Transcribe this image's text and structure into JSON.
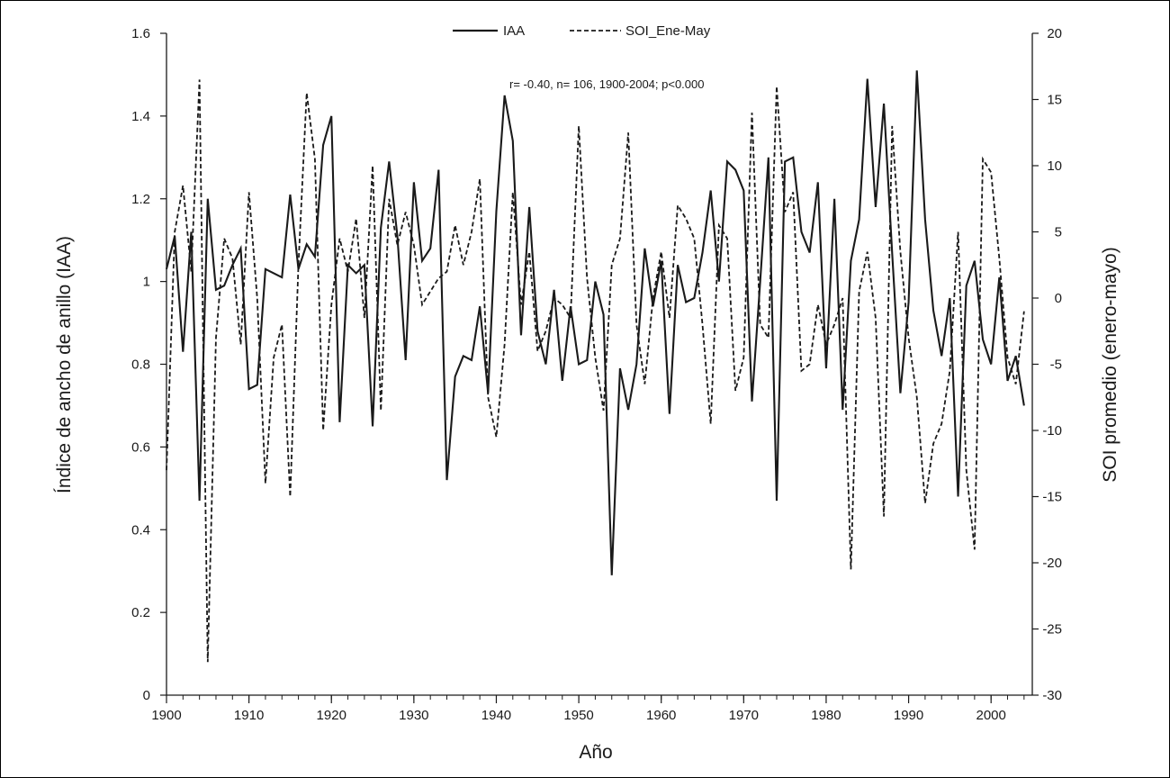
{
  "chart_data": {
    "type": "line",
    "title": "",
    "annotation": "r= -0.40, n= 106, 1900-2004; p<0.000",
    "xlabel": "Año",
    "ylabel_left": "Índice de ancho de anillo (IAA)",
    "ylabel_right": "SOI promedio (enero-mayo)",
    "xlim": [
      1900,
      2005
    ],
    "ylim_left": [
      0,
      1.6
    ],
    "ylim_right": [
      -30,
      20
    ],
    "x_ticks": [
      1900,
      1910,
      1920,
      1930,
      1940,
      1950,
      1960,
      1970,
      1980,
      1990,
      2000
    ],
    "y_left_ticks": [
      0,
      0.2,
      0.4,
      0.6,
      0.8,
      1,
      1.2,
      1.4,
      1.6
    ],
    "y_left_tick_labels": [
      "0",
      "0.2",
      "0.4",
      "0.6",
      "0.8",
      "1",
      "1.2",
      "1.4",
      "1.6"
    ],
    "y_right_ticks": [
      -30,
      -25,
      -20,
      -15,
      -10,
      -5,
      0,
      5,
      10,
      15,
      20
    ],
    "y_right_tick_labels": [
      "-30",
      "-25",
      "-20",
      "-15",
      "-10",
      "-5",
      "0",
      "5",
      "10",
      "15",
      "20"
    ],
    "grid": false,
    "legend": {
      "position": "top-center"
    },
    "x": [
      1900,
      1901,
      1902,
      1903,
      1904,
      1905,
      1906,
      1907,
      1908,
      1909,
      1910,
      1911,
      1912,
      1913,
      1914,
      1915,
      1916,
      1917,
      1918,
      1919,
      1920,
      1921,
      1922,
      1923,
      1924,
      1925,
      1926,
      1927,
      1928,
      1929,
      1930,
      1931,
      1932,
      1933,
      1934,
      1935,
      1936,
      1937,
      1938,
      1939,
      1940,
      1941,
      1942,
      1943,
      1944,
      1945,
      1946,
      1947,
      1948,
      1949,
      1950,
      1951,
      1952,
      1953,
      1954,
      1955,
      1956,
      1957,
      1958,
      1959,
      1960,
      1961,
      1962,
      1963,
      1964,
      1965,
      1966,
      1967,
      1968,
      1969,
      1970,
      1971,
      1972,
      1973,
      1974,
      1975,
      1976,
      1977,
      1978,
      1979,
      1980,
      1981,
      1982,
      1983,
      1984,
      1985,
      1986,
      1987,
      1988,
      1989,
      1990,
      1991,
      1992,
      1993,
      1994,
      1995,
      1996,
      1997,
      1998,
      1999,
      2000,
      2001,
      2002,
      2003,
      2004
    ],
    "series": [
      {
        "name": "IAA",
        "axis": "left",
        "style": "solid",
        "color": "#1a1a1a",
        "values": [
          1.03,
          1.11,
          0.83,
          1.12,
          0.47,
          1.2,
          0.98,
          0.99,
          1.04,
          1.08,
          0.74,
          0.75,
          1.03,
          1.02,
          1.01,
          1.21,
          1.03,
          1.09,
          1.06,
          1.33,
          1.4,
          0.66,
          1.04,
          1.02,
          1.04,
          0.65,
          1.13,
          1.29,
          1.11,
          0.81,
          1.24,
          1.05,
          1.08,
          1.27,
          0.52,
          0.77,
          0.82,
          0.81,
          0.94,
          0.73,
          1.17,
          1.45,
          1.34,
          0.87,
          1.18,
          0.88,
          0.8,
          0.98,
          0.76,
          0.94,
          0.8,
          0.81,
          1.0,
          0.92,
          0.29,
          0.79,
          0.69,
          0.8,
          1.08,
          0.94,
          1.05,
          0.68,
          1.04,
          0.95,
          0.96,
          1.07,
          1.22,
          1.0,
          1.29,
          1.27,
          1.22,
          0.71,
          1.0,
          1.3,
          0.47,
          1.29,
          1.3,
          1.12,
          1.07,
          1.24,
          0.79,
          1.2,
          0.69,
          1.05,
          1.15,
          1.49,
          1.18,
          1.43,
          1.07,
          0.73,
          0.95,
          1.51,
          1.15,
          0.93,
          0.82,
          0.96,
          0.48,
          0.99,
          1.05,
          0.86,
          0.8,
          1.01,
          0.76,
          0.82,
          0.7
        ]
      },
      {
        "name": "SOI_Ene-May",
        "axis": "right",
        "style": "dashed",
        "color": "#1a1a1a",
        "values": [
          -13.0,
          5.0,
          8.5,
          2.0,
          16.5,
          -27.5,
          -3.0,
          4.5,
          3.0,
          -3.5,
          8.0,
          0.0,
          -14.0,
          -4.5,
          -2.0,
          -15.0,
          2.5,
          15.5,
          10.5,
          -10.0,
          -0.5,
          4.5,
          2.0,
          6.0,
          -1.5,
          10.0,
          -8.5,
          7.5,
          4.0,
          6.5,
          4.0,
          -0.5,
          0.5,
          1.5,
          2.0,
          5.5,
          2.5,
          5.0,
          9.0,
          -7.5,
          -10.5,
          -3.5,
          8.0,
          -0.5,
          3.5,
          -4.0,
          -2.5,
          0.0,
          -0.5,
          -1.5,
          13.0,
          1.5,
          -4.5,
          -8.5,
          2.5,
          4.5,
          12.5,
          -2.0,
          -6.5,
          0.0,
          3.5,
          -1.5,
          7.0,
          6.0,
          4.5,
          -2.0,
          -9.5,
          5.5,
          4.5,
          -7.0,
          -4.5,
          14.0,
          -2.0,
          -3.0,
          16.0,
          6.5,
          8.0,
          -5.5,
          -5.0,
          -0.5,
          -3.5,
          -2.0,
          0.0,
          -20.5,
          0.5,
          3.5,
          -1.5,
          -16.5,
          13.0,
          3.5,
          -3.0,
          -7.5,
          -15.5,
          -11.0,
          -9.5,
          -5.5,
          5.0,
          -13.0,
          -19.0,
          10.5,
          9.5,
          3.0,
          -4.5,
          -6.5,
          -1.0
        ]
      }
    ]
  }
}
